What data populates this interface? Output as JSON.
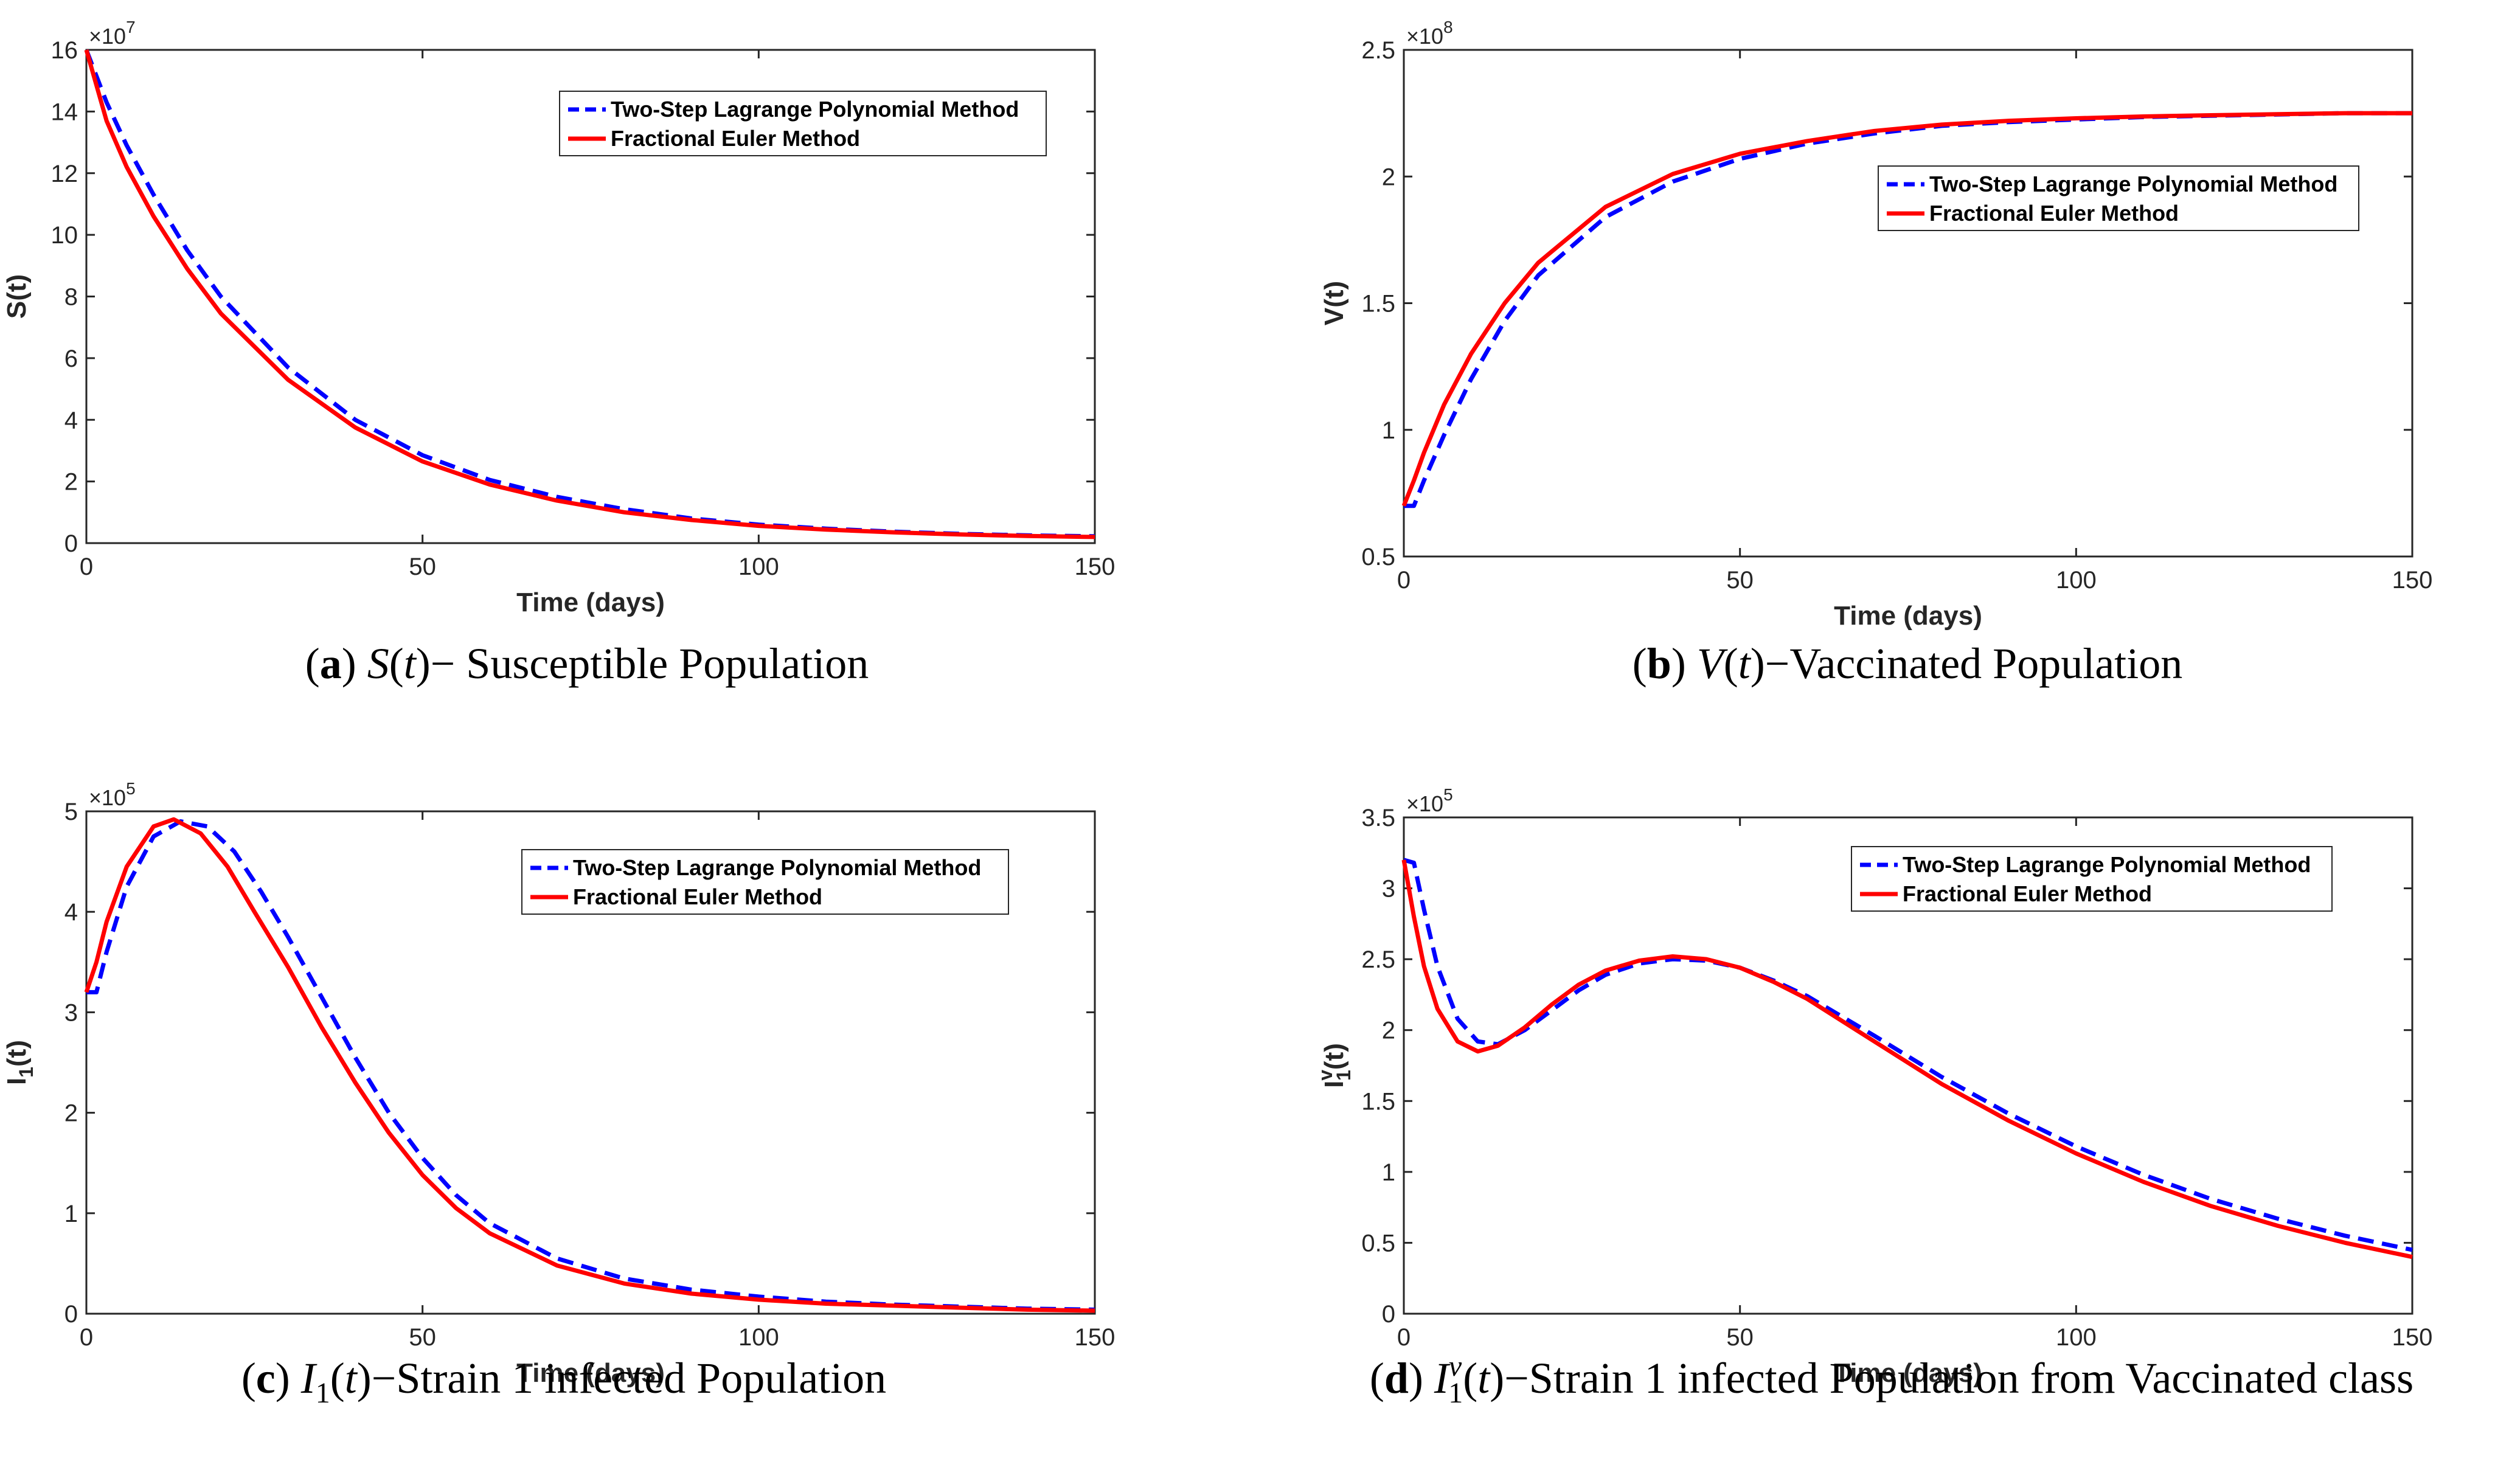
{
  "chart_data": [
    {
      "id": "a",
      "type": "line",
      "xlabel": "Time (days)",
      "ylabel": "S(t)",
      "exponent": "×10^7",
      "exponent_base": "×10",
      "exponent_power": "7",
      "xlim": [
        0,
        150
      ],
      "ylim": [
        0,
        16
      ],
      "xticks": [
        0,
        50,
        100,
        150
      ],
      "yticks": [
        0,
        2,
        4,
        6,
        8,
        10,
        12,
        14,
        16
      ],
      "legend_position": "upper-right",
      "caption": {
        "letter": "a",
        "math": "S(t)",
        "text": "− Susceptible Population"
      },
      "series": [
        {
          "name": "Two-Step Lagrange Polynomial Method",
          "color": "#0000ff",
          "style": "dashed",
          "x": [
            0,
            3,
            6,
            10,
            15,
            20,
            30,
            40,
            50,
            60,
            70,
            80,
            90,
            100,
            110,
            120,
            130,
            140,
            150
          ],
          "y": [
            16,
            14.3,
            12.9,
            11.3,
            9.5,
            8.0,
            5.7,
            4.0,
            2.85,
            2.05,
            1.5,
            1.1,
            0.8,
            0.6,
            0.47,
            0.37,
            0.3,
            0.25,
            0.22
          ]
        },
        {
          "name": "Fractional Euler Method",
          "color": "#ff0000",
          "style": "solid",
          "x": [
            0,
            3,
            6,
            10,
            15,
            20,
            30,
            40,
            50,
            60,
            70,
            80,
            90,
            100,
            110,
            120,
            130,
            140,
            150
          ],
          "y": [
            16,
            13.7,
            12.2,
            10.6,
            8.9,
            7.45,
            5.3,
            3.75,
            2.65,
            1.9,
            1.38,
            1.0,
            0.75,
            0.56,
            0.44,
            0.35,
            0.28,
            0.23,
            0.2
          ]
        }
      ]
    },
    {
      "id": "b",
      "type": "line",
      "xlabel": "Time (days)",
      "ylabel": "V(t)",
      "exponent": "×10^8",
      "exponent_base": "×10",
      "exponent_power": "8",
      "xlim": [
        0,
        150
      ],
      "ylim": [
        0.5,
        2.5
      ],
      "xticks": [
        0,
        50,
        100,
        150
      ],
      "yticks": [
        0.5,
        1,
        1.5,
        2,
        2.5
      ],
      "legend_position": "right",
      "caption": {
        "letter": "b",
        "math": "V(t)",
        "text": "−Vaccinated Population"
      },
      "series": [
        {
          "name": "Two-Step Lagrange Polynomial Method",
          "color": "#0000ff",
          "style": "dashed",
          "x": [
            0,
            1.5,
            3,
            6,
            10,
            15,
            20,
            30,
            40,
            50,
            60,
            70,
            80,
            90,
            100,
            110,
            120,
            130,
            140,
            150
          ],
          "y": [
            0.7,
            0.7,
            0.8,
            0.98,
            1.2,
            1.43,
            1.61,
            1.84,
            1.98,
            2.07,
            2.13,
            2.17,
            2.2,
            2.215,
            2.225,
            2.235,
            2.24,
            2.245,
            2.25,
            2.25
          ]
        },
        {
          "name": "Fractional Euler Method",
          "color": "#ff0000",
          "style": "solid",
          "x": [
            0,
            1.5,
            3,
            6,
            10,
            15,
            20,
            30,
            40,
            50,
            60,
            70,
            80,
            90,
            100,
            110,
            120,
            130,
            140,
            150
          ],
          "y": [
            0.7,
            0.8,
            0.91,
            1.1,
            1.3,
            1.5,
            1.66,
            1.88,
            2.01,
            2.09,
            2.14,
            2.18,
            2.205,
            2.22,
            2.23,
            2.237,
            2.242,
            2.246,
            2.25,
            2.25
          ]
        }
      ]
    },
    {
      "id": "c",
      "type": "line",
      "xlabel": "Time (days)",
      "ylabel": "I1(t)",
      "exponent": "×10^5",
      "exponent_base": "×10",
      "exponent_power": "5",
      "xlim": [
        0,
        150
      ],
      "ylim": [
        0,
        5
      ],
      "xticks": [
        0,
        50,
        100,
        150
      ],
      "yticks": [
        0,
        1,
        2,
        3,
        4,
        5
      ],
      "legend_position": "upper-right",
      "caption": {
        "letter": "c",
        "math": "I1(t)",
        "text": "−Strain 1 infected Population"
      },
      "series": [
        {
          "name": "Two-Step Lagrange Polynomial Method",
          "color": "#0000ff",
          "style": "dashed",
          "x": [
            0,
            1.5,
            3,
            6,
            10,
            14,
            18,
            22,
            26,
            30,
            35,
            40,
            45,
            50,
            55,
            60,
            70,
            80,
            90,
            100,
            110,
            120,
            130,
            140,
            150
          ],
          "y": [
            3.2,
            3.2,
            3.6,
            4.25,
            4.75,
            4.9,
            4.85,
            4.6,
            4.2,
            3.75,
            3.15,
            2.55,
            2.0,
            1.55,
            1.18,
            0.9,
            0.55,
            0.35,
            0.24,
            0.17,
            0.12,
            0.09,
            0.07,
            0.05,
            0.04
          ]
        },
        {
          "name": "Fractional Euler Method",
          "color": "#ff0000",
          "style": "solid",
          "x": [
            0,
            1.5,
            3,
            6,
            10,
            13,
            17,
            21,
            25,
            30,
            35,
            40,
            45,
            50,
            55,
            60,
            70,
            80,
            90,
            100,
            110,
            120,
            130,
            140,
            150
          ],
          "y": [
            3.2,
            3.5,
            3.9,
            4.45,
            4.85,
            4.92,
            4.78,
            4.45,
            4.0,
            3.45,
            2.85,
            2.3,
            1.8,
            1.38,
            1.05,
            0.8,
            0.48,
            0.3,
            0.2,
            0.14,
            0.1,
            0.08,
            0.06,
            0.04,
            0.03
          ]
        }
      ]
    },
    {
      "id": "d",
      "type": "line",
      "xlabel": "Time (days)",
      "ylabel": "I1v(t)",
      "exponent": "×10^5",
      "exponent_base": "×10",
      "exponent_power": "5",
      "xlim": [
        0,
        150
      ],
      "ylim": [
        0,
        3.5
      ],
      "xticks": [
        0,
        50,
        100,
        150
      ],
      "yticks": [
        0,
        0.5,
        1,
        1.5,
        2,
        2.5,
        3,
        3.5
      ],
      "legend_position": "upper-right",
      "caption": {
        "letter": "d",
        "math": "I1v(t)",
        "text": "−Strain 1 infected Population from Vaccinated class"
      },
      "series": [
        {
          "name": "Two-Step Lagrange Polynomial Method",
          "color": "#0000ff",
          "style": "dashed",
          "x": [
            0,
            1.5,
            3,
            5,
            8,
            11,
            14,
            18,
            22,
            26,
            30,
            35,
            40,
            45,
            50,
            55,
            60,
            70,
            80,
            90,
            100,
            110,
            120,
            130,
            140,
            150
          ],
          "y": [
            3.2,
            3.18,
            2.85,
            2.45,
            2.08,
            1.92,
            1.9,
            2.0,
            2.14,
            2.28,
            2.39,
            2.47,
            2.5,
            2.49,
            2.44,
            2.35,
            2.24,
            1.96,
            1.67,
            1.41,
            1.18,
            0.98,
            0.81,
            0.67,
            0.55,
            0.45
          ]
        },
        {
          "name": "Fractional Euler Method",
          "color": "#ff0000",
          "style": "solid",
          "x": [
            0,
            1.5,
            3,
            5,
            8,
            11,
            14,
            18,
            22,
            26,
            30,
            35,
            40,
            45,
            50,
            55,
            60,
            70,
            80,
            90,
            100,
            110,
            120,
            130,
            140,
            150
          ],
          "y": [
            3.2,
            2.8,
            2.45,
            2.15,
            1.92,
            1.85,
            1.89,
            2.02,
            2.18,
            2.32,
            2.42,
            2.49,
            2.52,
            2.5,
            2.44,
            2.34,
            2.22,
            1.92,
            1.62,
            1.36,
            1.13,
            0.93,
            0.76,
            0.62,
            0.5,
            0.4
          ]
        }
      ]
    }
  ]
}
